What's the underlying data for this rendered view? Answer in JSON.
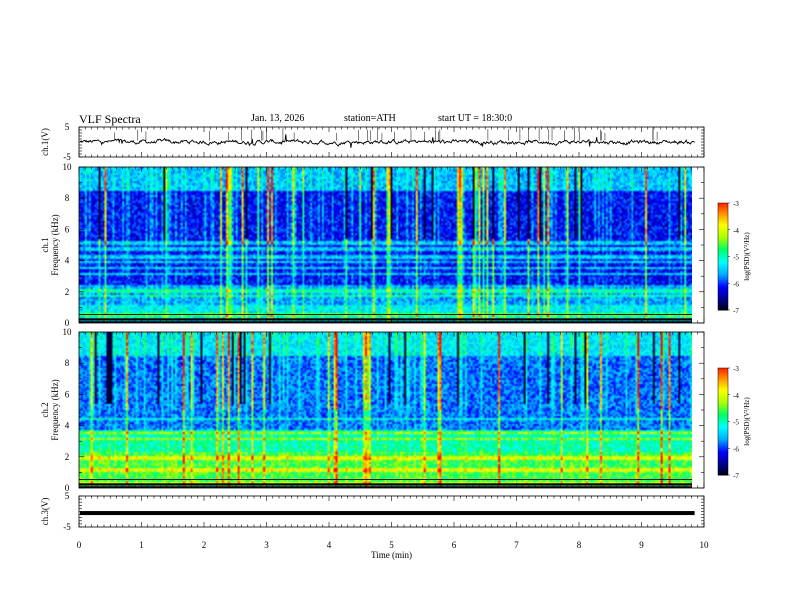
{
  "header": {
    "title": "VLF  Spectra",
    "date": "Jan. 13, 2026",
    "station": "station=ATH",
    "start": "start  UT  =   18:30:0"
  },
  "chart_data": [
    {
      "type": "line",
      "panel": "ch1-waveform",
      "ylabel": "ch.1(V)",
      "ylim": [
        -5,
        5
      ],
      "yticks": [
        "5",
        "-5"
      ],
      "xlim": [
        0,
        10
      ],
      "baseline": 0,
      "trace_color": "#000000"
    },
    {
      "type": "heatmap",
      "panel": "ch1-spectrogram",
      "ylabel": "ch.1\nFrequency (kHz)",
      "ylim": [
        0,
        10
      ],
      "yticks": [
        "0",
        "2",
        "4",
        "6",
        "8",
        "10"
      ],
      "xlim": [
        0,
        9.85
      ],
      "colorbar": {
        "label": "log(PSD)(V²/Hz)",
        "range": [
          -7,
          -3
        ],
        "ticks": [
          "-3",
          "-4",
          "-5",
          "-6",
          "-7"
        ]
      },
      "bands_khz": [
        0.6,
        1.8,
        2.1,
        3.2,
        3.6,
        4.0,
        4.3,
        4.8,
        5.2
      ]
    },
    {
      "type": "heatmap",
      "panel": "ch2-spectrogram",
      "ylabel": "ch.2\nFrequency (kHz)",
      "ylim": [
        0,
        10
      ],
      "yticks": [
        "0",
        "2",
        "4",
        "6",
        "8",
        "10"
      ],
      "xlim": [
        0,
        9.85
      ],
      "colorbar": {
        "label": "log(PSD)(V²/Hz)",
        "range": [
          -7,
          -3
        ],
        "ticks": [
          "-3",
          "-4",
          "-5",
          "-6",
          "-7"
        ]
      },
      "bands_khz": [
        0.4,
        1.2,
        2.0,
        3.2,
        3.6,
        4.5
      ]
    },
    {
      "type": "line",
      "panel": "ch3-waveform",
      "ylabel": "ch.3(V)",
      "ylim": [
        -5,
        5
      ],
      "yticks": [
        "5",
        "-5"
      ],
      "xlim": [
        0,
        10
      ],
      "baseline": -0.5,
      "trace_color": "#000000"
    }
  ],
  "xaxis": {
    "label": "Time  (min)",
    "ticks": [
      "0",
      "1",
      "2",
      "3",
      "4",
      "5",
      "6",
      "7",
      "8",
      "9",
      "10"
    ]
  },
  "colors": {
    "frame": "#000000",
    "cmap": [
      "#000000",
      "#00008c",
      "#0000ff",
      "#00aaff",
      "#00ffff",
      "#00ff66",
      "#aaff00",
      "#ffff00",
      "#ff8800",
      "#ff0000",
      "#ffffff"
    ]
  }
}
